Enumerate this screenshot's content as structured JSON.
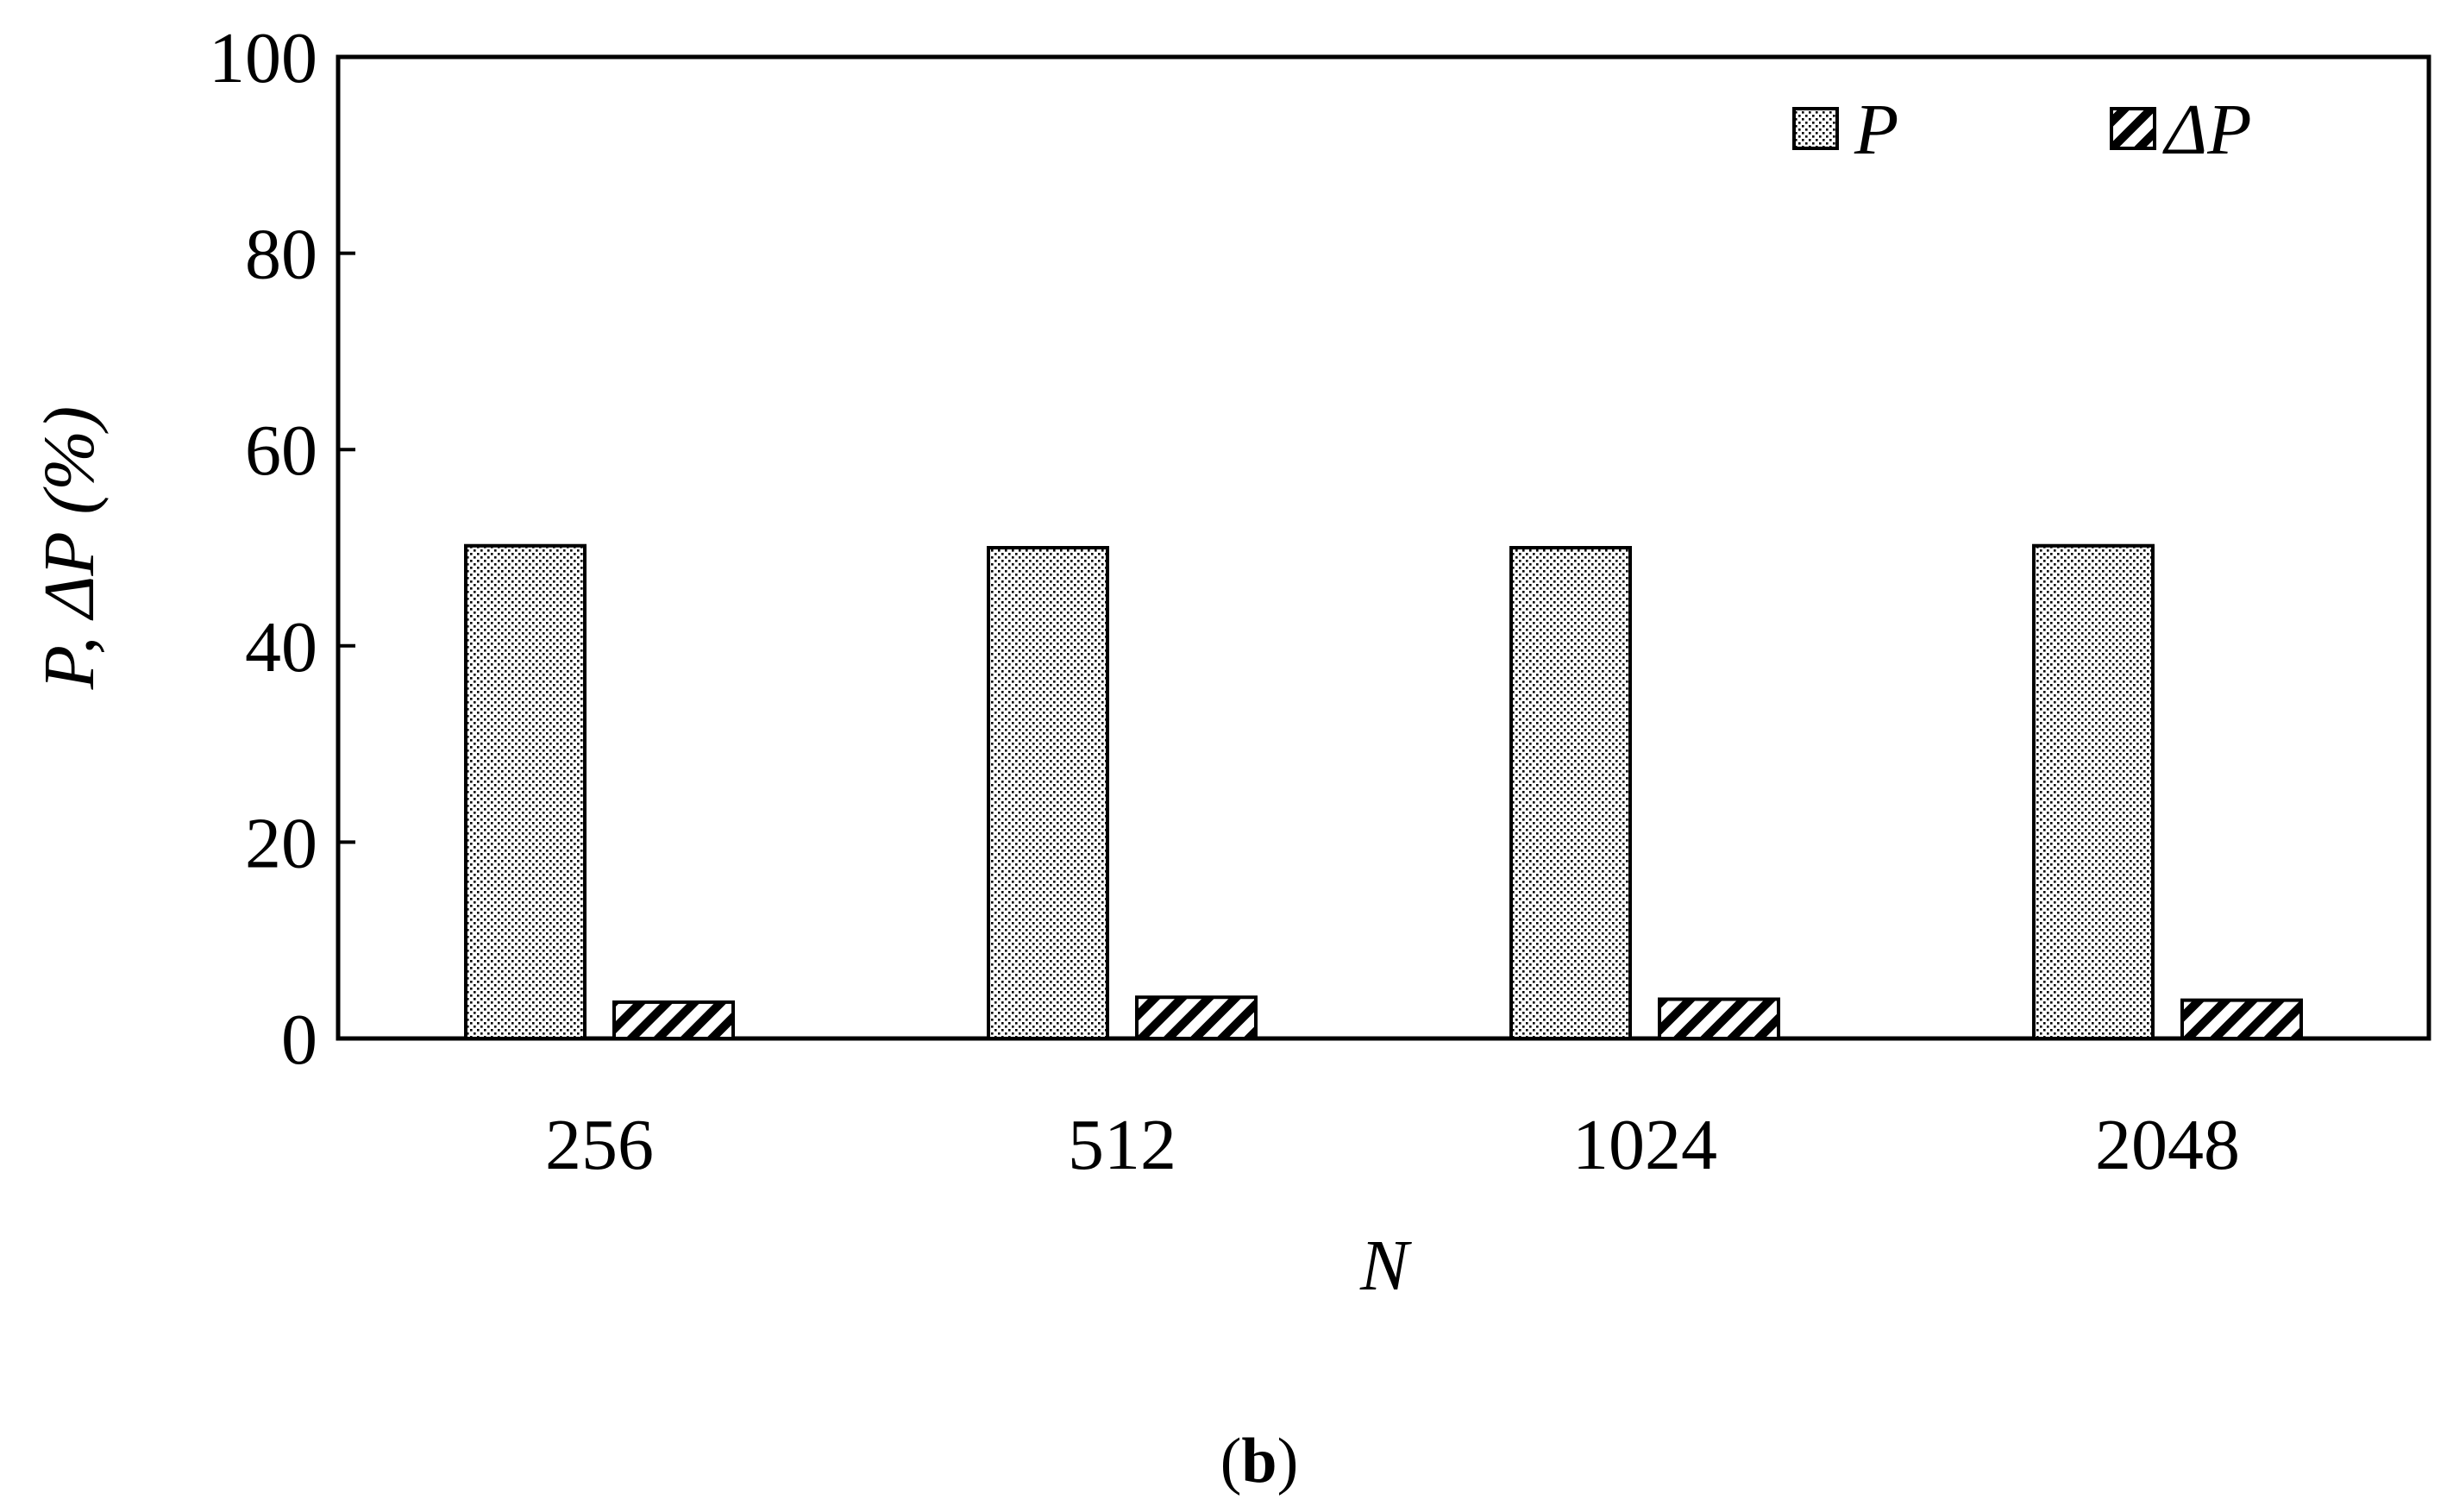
{
  "chart_data": {
    "type": "bar",
    "categories": [
      "256",
      "512",
      "1024",
      "2048"
    ],
    "series": [
      {
        "name": "P",
        "values": [
          50.2,
          50.0,
          50.0,
          50.2
        ],
        "pattern": "dots"
      },
      {
        "name": "ΔP",
        "values": [
          3.7,
          4.2,
          4.0,
          3.9
        ],
        "pattern": "diagonal-hatch"
      }
    ],
    "xlabel": "N",
    "ylabel": "P, ΔP (%)",
    "ylim": [
      0,
      100
    ],
    "yticks": [
      "0",
      "20",
      "40",
      "60",
      "80",
      "100"
    ],
    "legend_position": "top-right",
    "grid": false,
    "panel_label_open": "(",
    "panel_label_letter": "b",
    "panel_label_close": ")"
  }
}
